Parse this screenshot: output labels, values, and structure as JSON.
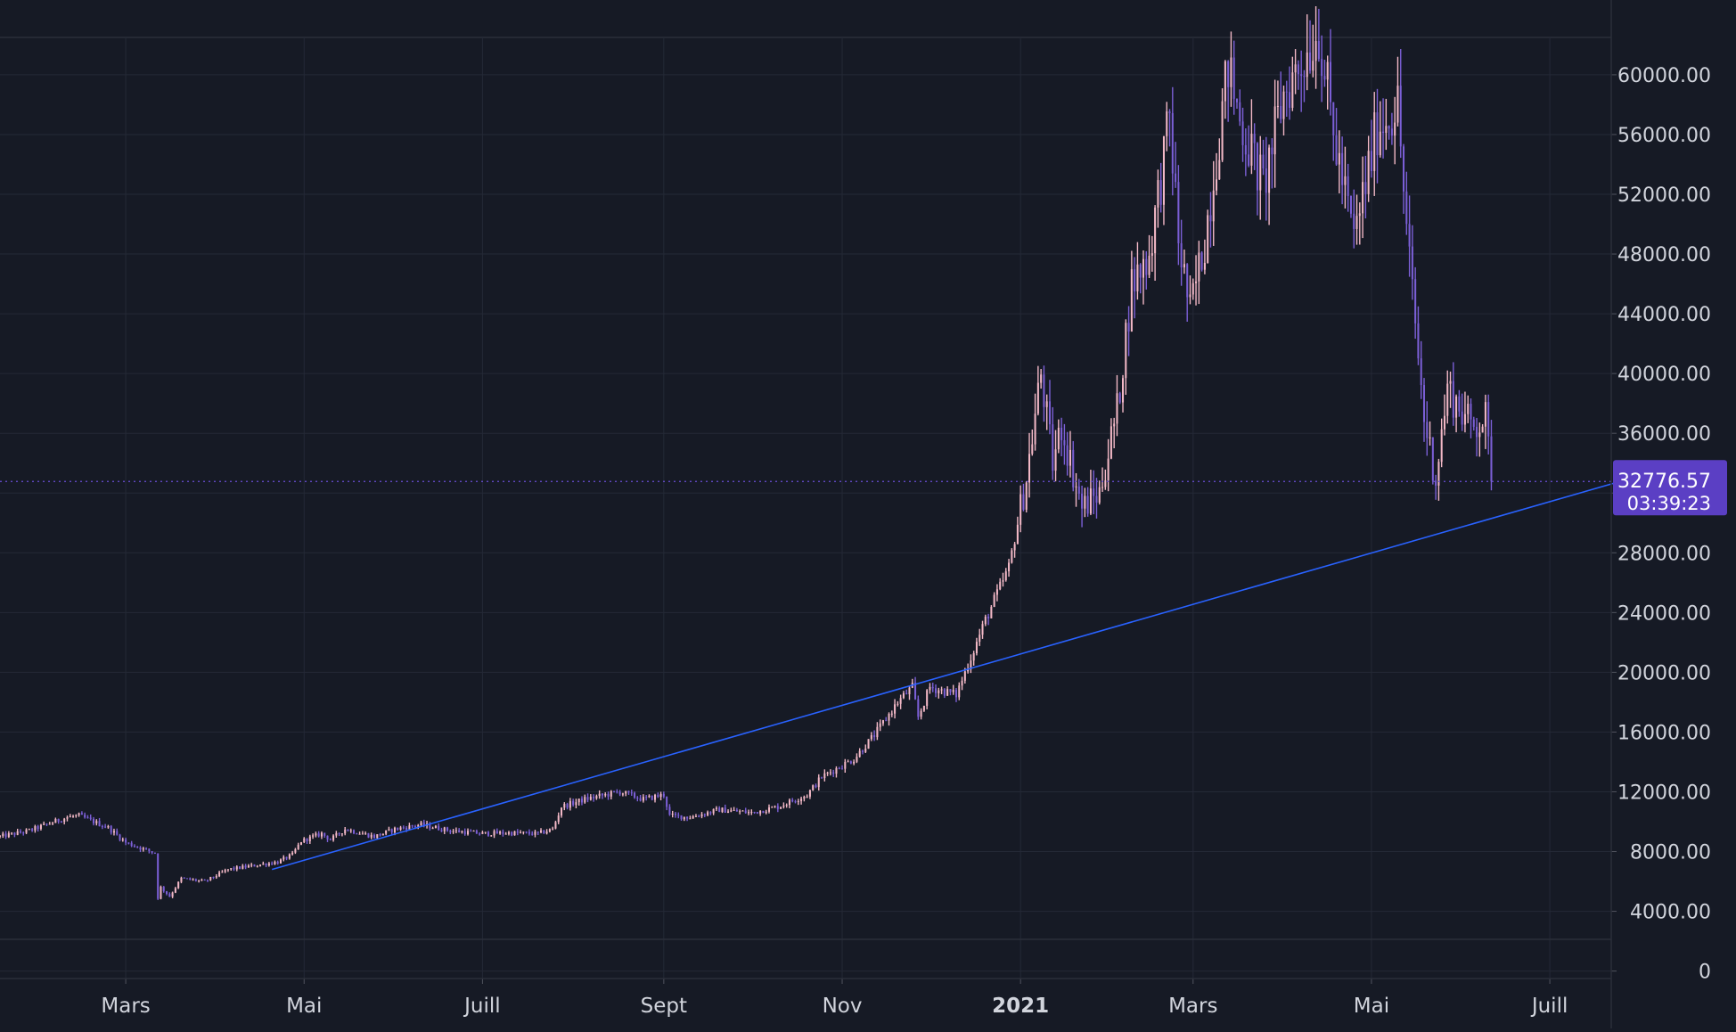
{
  "chart_data": {
    "type": "candlestick",
    "title": "",
    "xlabel": "",
    "ylabel": "",
    "ylim": [
      -500,
      62500
    ],
    "xlim": [
      "2020-01-18",
      "2021-07-22"
    ],
    "y_ticks": [
      "60000.00",
      "56000.00",
      "52000.00",
      "48000.00",
      "44000.00",
      "40000.00",
      "36000.00",
      "32000.00",
      "28000.00",
      "24000.00",
      "20000.00",
      "16000.00",
      "12000.00",
      "8000.00",
      "4000.00",
      "0"
    ],
    "x_ticks": [
      {
        "date": "2020-03-01",
        "label": "Mars",
        "bold": false
      },
      {
        "date": "2020-05-01",
        "label": "Mai",
        "bold": false
      },
      {
        "date": "2020-07-01",
        "label": "Juill",
        "bold": false
      },
      {
        "date": "2020-09-01",
        "label": "Sept",
        "bold": false
      },
      {
        "date": "2020-11-01",
        "label": "Nov",
        "bold": false
      },
      {
        "date": "2021-01-01",
        "label": "2021",
        "bold": true
      },
      {
        "date": "2021-03-01",
        "label": "Mars",
        "bold": false
      },
      {
        "date": "2021-05-01",
        "label": "Mai",
        "bold": false
      },
      {
        "date": "2021-07-01",
        "label": "Juill",
        "bold": false
      }
    ],
    "grid": true,
    "colors": {
      "background": "#161a25",
      "up": "#f2b8c6",
      "down": "#7b5fd6",
      "trendline": "#2962ff",
      "grid": "#242936",
      "axis_text": "#d1d4dc",
      "price_label": "#5b3fc4"
    },
    "series": [
      {
        "points": [
          [
            "2020-01-18",
            9000
          ],
          [
            "2020-01-28",
            9400
          ],
          [
            "2020-02-10",
            10300
          ],
          [
            "2020-02-14",
            10400
          ],
          [
            "2020-02-24",
            9600
          ],
          [
            "2020-03-01",
            8600
          ],
          [
            "2020-03-08",
            8100
          ],
          [
            "2020-03-11",
            7900
          ],
          [
            "2020-03-12",
            4900
          ],
          [
            "2020-03-13",
            5600
          ],
          [
            "2020-03-16",
            5000
          ],
          [
            "2020-03-20",
            6200
          ],
          [
            "2020-03-28",
            6000
          ],
          [
            "2020-04-05",
            6800
          ],
          [
            "2020-04-15",
            7100
          ],
          [
            "2020-04-22",
            7300
          ],
          [
            "2020-04-27",
            7800
          ],
          [
            "2020-04-30",
            8700
          ],
          [
            "2020-05-07",
            9200
          ],
          [
            "2020-05-10",
            8800
          ],
          [
            "2020-05-15",
            9500
          ],
          [
            "2020-05-25",
            9000
          ],
          [
            "2020-06-01",
            9500
          ],
          [
            "2020-06-10",
            9800
          ],
          [
            "2020-06-20",
            9400
          ],
          [
            "2020-07-01",
            9200
          ],
          [
            "2020-07-10",
            9250
          ],
          [
            "2020-07-20",
            9200
          ],
          [
            "2020-07-25",
            9500
          ],
          [
            "2020-07-28",
            11000
          ],
          [
            "2020-08-05",
            11500
          ],
          [
            "2020-08-17",
            12000
          ],
          [
            "2020-08-25",
            11500
          ],
          [
            "2020-09-01",
            11800
          ],
          [
            "2020-09-03",
            10400
          ],
          [
            "2020-09-10",
            10300
          ],
          [
            "2020-09-20",
            10800
          ],
          [
            "2020-10-01",
            10600
          ],
          [
            "2020-10-10",
            11000
          ],
          [
            "2020-10-20",
            11800
          ],
          [
            "2020-10-25",
            13000
          ],
          [
            "2020-11-05",
            14200
          ],
          [
            "2020-11-12",
            15800
          ],
          [
            "2020-11-20",
            18000
          ],
          [
            "2020-11-25",
            19000
          ],
          [
            "2020-11-27",
            17000
          ],
          [
            "2020-12-01",
            19000
          ],
          [
            "2020-12-10",
            18500
          ],
          [
            "2020-12-17",
            22000
          ],
          [
            "2020-12-20",
            23500
          ],
          [
            "2020-12-28",
            27000
          ],
          [
            "2021-01-03",
            33000
          ],
          [
            "2021-01-08",
            40000
          ],
          [
            "2021-01-12",
            34000
          ],
          [
            "2021-01-15",
            36500
          ],
          [
            "2021-01-22",
            31000
          ],
          [
            "2021-01-28",
            32000
          ],
          [
            "2021-02-03",
            37500
          ],
          [
            "2021-02-08",
            46000
          ],
          [
            "2021-02-14",
            48000
          ],
          [
            "2021-02-21",
            57000
          ],
          [
            "2021-02-24",
            49000
          ],
          [
            "2021-02-28",
            44000
          ],
          [
            "2021-03-05",
            49000
          ],
          [
            "2021-03-13",
            60500
          ],
          [
            "2021-03-17",
            57000
          ],
          [
            "2021-03-25",
            52500
          ],
          [
            "2021-04-01",
            58700
          ],
          [
            "2021-04-13",
            63000
          ],
          [
            "2021-04-18",
            56000
          ],
          [
            "2021-04-25",
            49000
          ],
          [
            "2021-05-03",
            56500
          ],
          [
            "2021-05-10",
            58000
          ],
          [
            "2021-05-13",
            49500
          ],
          [
            "2021-05-19",
            37000
          ],
          [
            "2021-05-23",
            33000
          ],
          [
            "2021-05-27",
            39000
          ],
          [
            "2021-06-04",
            36500
          ],
          [
            "2021-06-09",
            37000
          ],
          [
            "2021-06-11",
            32776
          ]
        ]
      }
    ],
    "trendline": {
      "from": [
        "2020-04-20",
        6800
      ],
      "to": [
        "2021-07-25",
        32776
      ]
    },
    "last_price": {
      "value": 32776.57,
      "label": "32776.57",
      "countdown": "03:39:23"
    }
  }
}
